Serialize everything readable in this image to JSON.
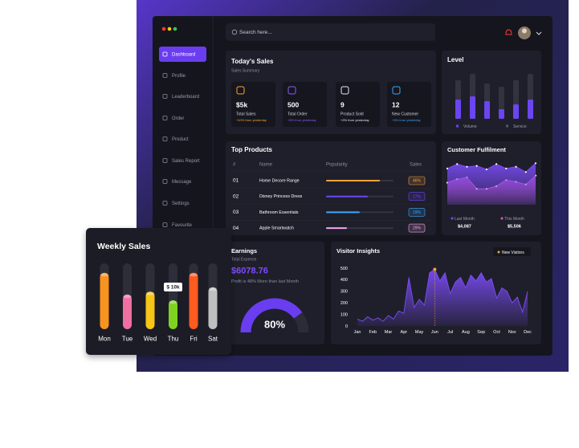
{
  "window": {
    "search_placeholder": "Search here..."
  },
  "sidebar": {
    "items": [
      "Dashboard",
      "Profile",
      "Leaderboard",
      "Order",
      "Product",
      "Sales Report",
      "Message",
      "Settings",
      "Favourite"
    ]
  },
  "todays_sales": {
    "title": "Today's Sales",
    "subtitle": "Sales Summary",
    "tiles": [
      {
        "value": "$5k",
        "label": "Total Sales",
        "change": "+10% from yesterday",
        "color": "#f7a23b"
      },
      {
        "value": "500",
        "label": "Total Order",
        "change": "+8% from yesterday",
        "color": "#8a5cf6"
      },
      {
        "value": "9",
        "label": "Product Sold",
        "change": "+2% from yesterday",
        "color": "#e8e8f0"
      },
      {
        "value": "12",
        "label": "New Customer",
        "change": "+3% from yesterday",
        "color": "#3ba6f7"
      }
    ]
  },
  "level": {
    "title": "Level",
    "legend": [
      "Volume",
      "Service"
    ],
    "colors": [
      "#6b45f0",
      "#33333f"
    ],
    "volume": [
      24,
      28,
      22,
      12,
      18,
      24
    ],
    "service": [
      48,
      56,
      44,
      40,
      48,
      56
    ]
  },
  "top_products": {
    "title": "Top Products",
    "columns": [
      "#",
      "Name",
      "Popularity",
      "Sales"
    ],
    "rows": [
      {
        "rank": "01",
        "name": "Home Decore Range",
        "popularity": 80,
        "sales": "46%",
        "color": "#f7a23b"
      },
      {
        "rank": "02",
        "name": "Disney Princess Dress",
        "popularity": 62,
        "sales": "17%",
        "color": "#6b45f0"
      },
      {
        "rank": "03",
        "name": "Bathroom Essentials",
        "popularity": 50,
        "sales": "19%",
        "color": "#3ba6f7"
      },
      {
        "rank": "04",
        "name": "Apple Smartwatch",
        "popularity": 31,
        "sales": "29%",
        "color": "#f0a6e8"
      }
    ]
  },
  "customer_fulfilment": {
    "title": "Customer Fulfilment",
    "series": [
      {
        "name": "Last Month",
        "value": "$4,087",
        "color": "#7b4cf7",
        "values": [
          82,
          92,
          86,
          88,
          80,
          92,
          82,
          86,
          74,
          94
        ]
      },
      {
        "name": "This Month",
        "value": "$5,506",
        "color": "#e056c8",
        "values": [
          50,
          58,
          62,
          36,
          36,
          42,
          56,
          52,
          46,
          66
        ]
      }
    ]
  },
  "earnings": {
    "title": "Earnings",
    "subtitle": "Total Expense",
    "amount": "$6078.76",
    "note": "Profit is 48% More than last Month",
    "gauge": {
      "value": 80,
      "label": "80%"
    }
  },
  "visitor_insights": {
    "title": "Visitor Insights",
    "legend": "New Visitors",
    "color": "#7b4cf7",
    "marker_color": "#f7a23b",
    "ylim": [
      0,
      500
    ],
    "yticks": [
      0,
      100,
      200,
      300,
      400,
      500
    ],
    "months": [
      "Jan",
      "Feb",
      "Mar",
      "Apr",
      "May",
      "Jun",
      "Jul",
      "Aug",
      "Sep",
      "Oct",
      "Nov",
      "Dec"
    ],
    "values": [
      60,
      40,
      80,
      50,
      70,
      40,
      90,
      60,
      130,
      110,
      420,
      160,
      230,
      180,
      460,
      490,
      390,
      460,
      280,
      380,
      420,
      330,
      440,
      390,
      460,
      380,
      410,
      240,
      330,
      300,
      200,
      250,
      120,
      300
    ]
  },
  "weekly_sales": {
    "title": "Weekly Sales",
    "days": [
      "Mon",
      "Tue",
      "Wed",
      "Thu",
      "Fri",
      "Sat"
    ],
    "colors": [
      "#f7931e",
      "#ee6fa0",
      "#f5c518",
      "#7ed321",
      "#ff5a1f",
      "#bfbfbf"
    ],
    "values": [
      19.5,
      12,
      13,
      10,
      19.5,
      14.5
    ],
    "value_labels": [
      null,
      null,
      null,
      "$ 10k",
      null,
      null
    ]
  }
}
